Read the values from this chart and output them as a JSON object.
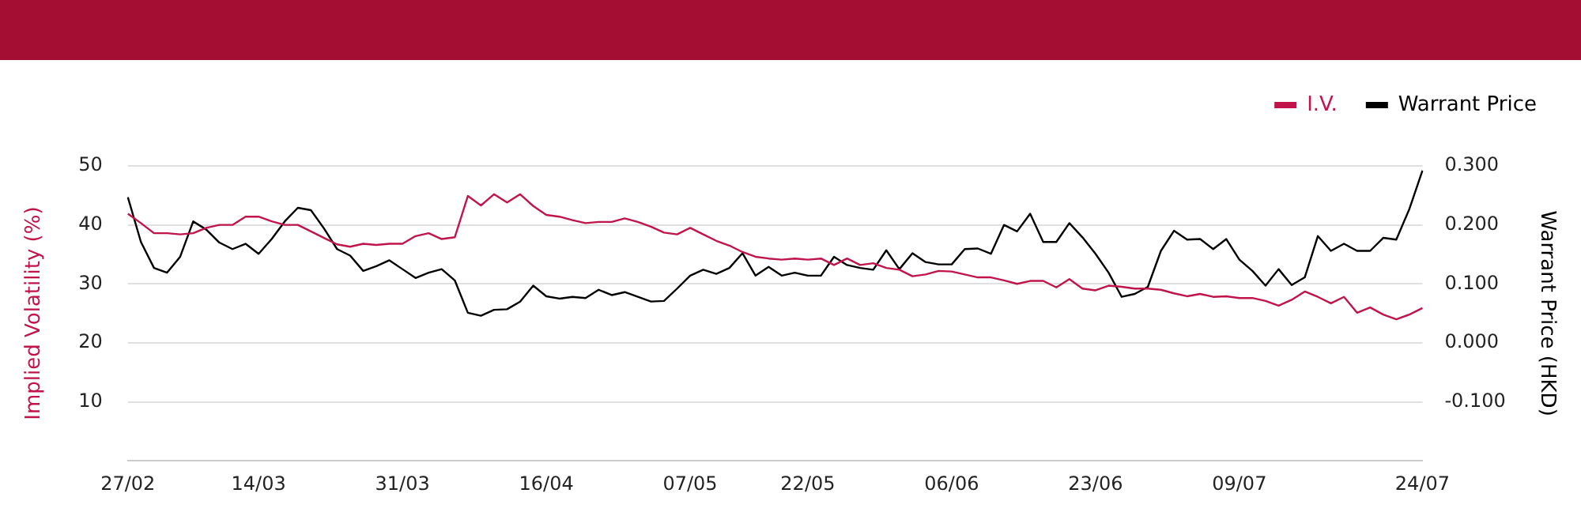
{
  "chart_data": {
    "type": "line",
    "categories": [
      "27/02",
      null,
      null,
      null,
      null,
      null,
      null,
      null,
      null,
      null,
      "14/03",
      null,
      null,
      null,
      null,
      null,
      null,
      null,
      null,
      null,
      null,
      "31/03",
      null,
      null,
      null,
      null,
      null,
      null,
      null,
      null,
      null,
      null,
      "16/04",
      null,
      null,
      null,
      null,
      null,
      null,
      null,
      null,
      null,
      null,
      "07/05",
      null,
      null,
      null,
      null,
      null,
      null,
      null,
      null,
      "22/05",
      null,
      null,
      null,
      null,
      null,
      null,
      null,
      null,
      null,
      null,
      "06/06",
      null,
      null,
      null,
      null,
      null,
      null,
      null,
      null,
      null,
      null,
      "23/06",
      null,
      null,
      null,
      null,
      null,
      null,
      null,
      null,
      null,
      null,
      "09/07",
      null,
      null,
      null,
      null,
      null,
      null,
      null,
      null,
      null,
      null,
      null,
      null,
      null,
      "24/07"
    ],
    "series": [
      {
        "name": "I.V.",
        "color": "#c0144a",
        "values": [
          41.9,
          40.3,
          38.6,
          38.6,
          38.4,
          38.6,
          39.5,
          40.0,
          40.0,
          41.4,
          41.4,
          40.6,
          40.0,
          40.0,
          38.9,
          37.8,
          36.7,
          36.3,
          36.8,
          36.6,
          36.8,
          36.8,
          38.1,
          38.6,
          37.6,
          37.9,
          44.9,
          43.3,
          45.2,
          43.8,
          45.2,
          43.2,
          41.7,
          41.4,
          40.8,
          40.3,
          40.5,
          40.5,
          41.1,
          40.5,
          39.7,
          38.7,
          38.4,
          39.5,
          38.4,
          37.3,
          36.5,
          35.4,
          34.6,
          34.3,
          34.1,
          34.3,
          34.1,
          34.3,
          33.2,
          34.3,
          33.2,
          33.5,
          32.7,
          32.4,
          31.3,
          31.6,
          32.2,
          32.1,
          31.6,
          31.1,
          31.1,
          30.6,
          30.0,
          30.5,
          30.5,
          29.4,
          30.8,
          29.2,
          28.9,
          29.7,
          29.5,
          29.2,
          29.2,
          29.0,
          28.4,
          27.9,
          28.3,
          27.8,
          27.9,
          27.6,
          27.6,
          27.1,
          26.3,
          27.3,
          28.7,
          27.8,
          26.7,
          27.8,
          25.1,
          26.0,
          24.8,
          24.0,
          24.8,
          25.9
        ]
      },
      {
        "name": "Warrant Price",
        "color": "#000000",
        "axis": "y2",
        "values": [
          0.247,
          0.171,
          0.127,
          0.119,
          0.146,
          0.206,
          0.192,
          0.17,
          0.159,
          0.168,
          0.151,
          0.176,
          0.206,
          0.229,
          0.225,
          0.194,
          0.159,
          0.148,
          0.122,
          0.13,
          0.14,
          0.125,
          0.11,
          0.119,
          0.125,
          0.106,
          0.051,
          0.046,
          0.056,
          0.057,
          0.07,
          0.097,
          0.079,
          0.075,
          0.078,
          0.076,
          0.09,
          0.081,
          0.086,
          0.078,
          0.07,
          0.071,
          0.092,
          0.114,
          0.124,
          0.117,
          0.127,
          0.152,
          0.114,
          0.129,
          0.114,
          0.119,
          0.114,
          0.114,
          0.146,
          0.132,
          0.127,
          0.124,
          0.157,
          0.125,
          0.152,
          0.137,
          0.133,
          0.133,
          0.159,
          0.16,
          0.151,
          0.2,
          0.189,
          0.219,
          0.171,
          0.171,
          0.203,
          0.179,
          0.151,
          0.119,
          0.078,
          0.083,
          0.095,
          0.156,
          0.19,
          0.175,
          0.176,
          0.159,
          0.176,
          0.141,
          0.122,
          0.097,
          0.125,
          0.098,
          0.111,
          0.181,
          0.156,
          0.168,
          0.156,
          0.156,
          0.178,
          0.175,
          0.227,
          0.292
        ]
      }
    ],
    "ylabel": "Implied Volatility (%)",
    "y2label": "Warrant Price (HKD)",
    "ylim": [
      0,
      50
    ],
    "yticks": [
      10,
      20,
      30,
      40,
      50
    ],
    "y2lim": [
      -0.2,
      0.3
    ],
    "y2ticks": [
      {
        "value": -0.1,
        "label": "-0.100"
      },
      {
        "value": 0,
        "label": "0.000"
      },
      {
        "value": 0.1,
        "label": "0.100"
      },
      {
        "value": 0.2,
        "label": "0.200"
      },
      {
        "value": 0.3,
        "label": "0.300"
      }
    ],
    "grid": "y",
    "legend": "top right",
    "marker": "none",
    "line_style": "solid"
  }
}
